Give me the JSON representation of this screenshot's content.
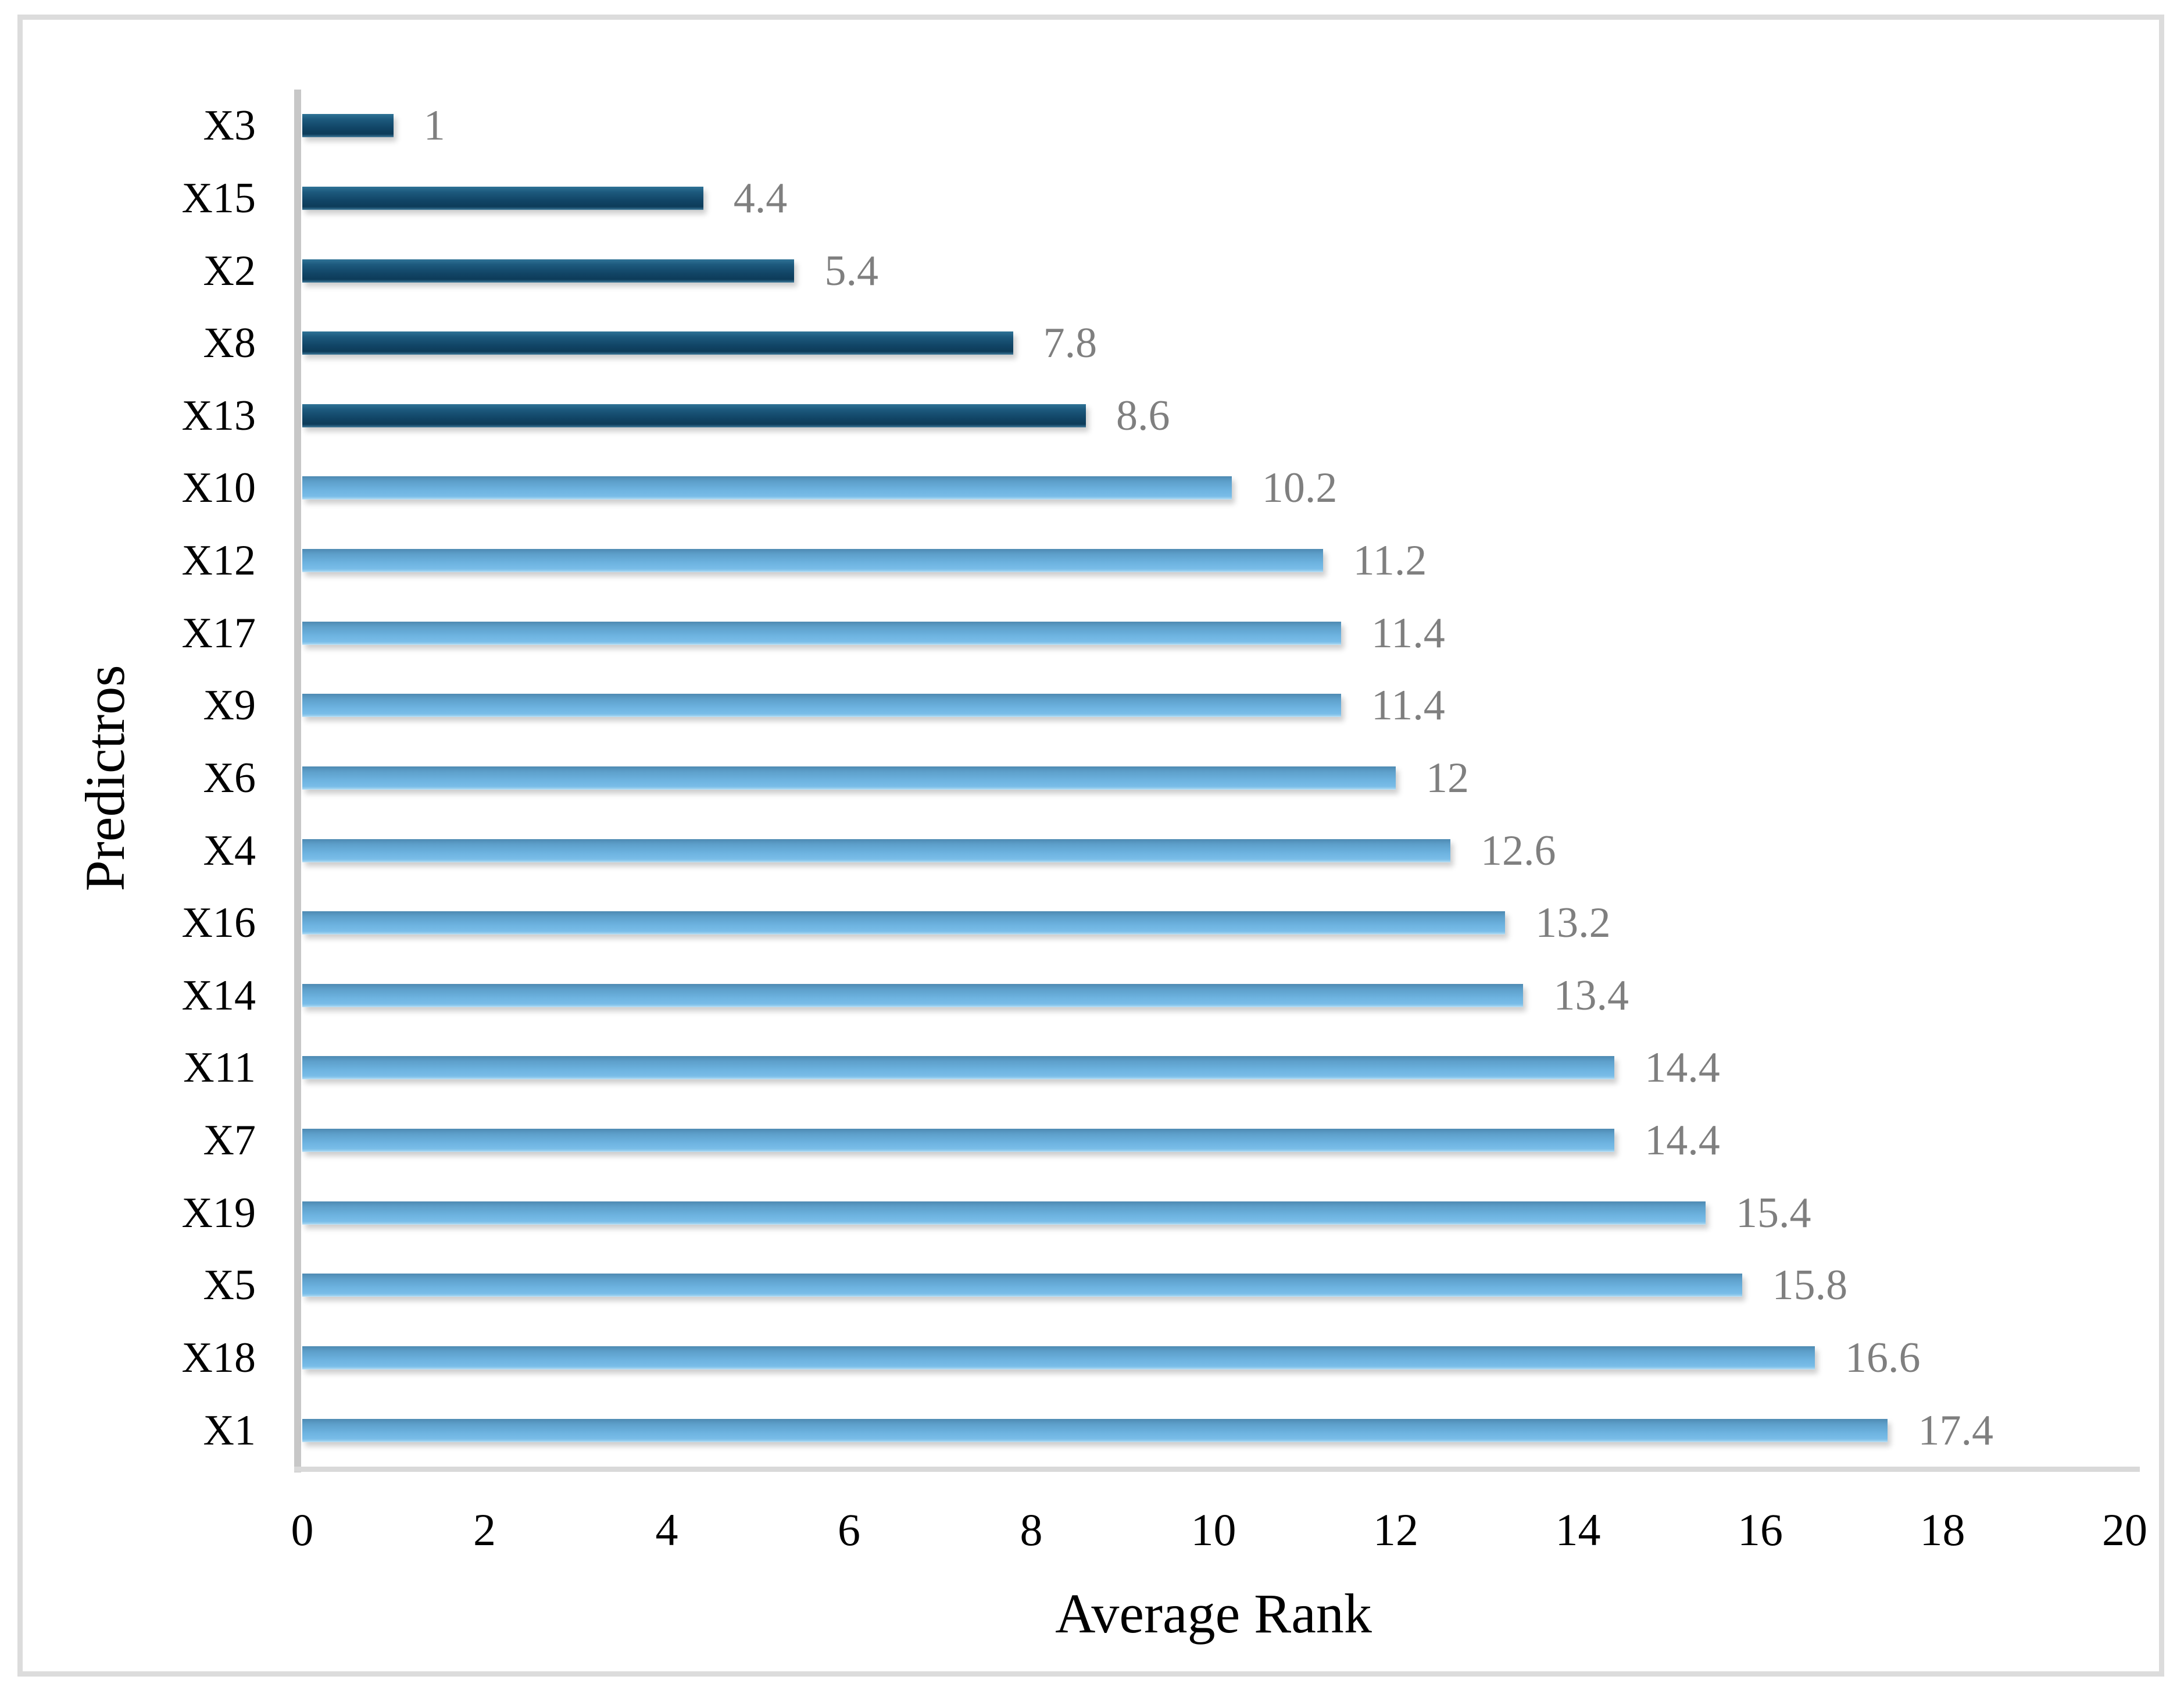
{
  "chart_data": {
    "type": "bar",
    "orientation": "horizontal",
    "title": "",
    "xlabel": "Average Rank",
    "ylabel": "Predictros",
    "xlim": [
      0,
      20
    ],
    "x_ticks": [
      "0",
      "2",
      "4",
      "6",
      "8",
      "10",
      "12",
      "14",
      "16",
      "18",
      "20"
    ],
    "grid": false,
    "legend": "none",
    "categories": [
      "X3",
      "X15",
      "X2",
      "X8",
      "X13",
      "X10",
      "X12",
      "X17",
      "X9",
      "X6",
      "X4",
      "X16",
      "X14",
      "X11",
      "X7",
      "X19",
      "X5",
      "X18",
      "X1"
    ],
    "values": [
      1,
      4.4,
      5.4,
      7.8,
      8.6,
      10.2,
      11.2,
      11.4,
      11.4,
      12,
      12.6,
      13.2,
      13.4,
      14.4,
      14.4,
      15.4,
      15.8,
      16.6,
      17.4
    ],
    "value_labels": [
      "1",
      "4.4",
      "5.4",
      "7.8",
      "8.6",
      "10.2",
      "11.2",
      "11.4",
      "11.4",
      "12",
      "12.6",
      "13.2",
      "13.4",
      "14.4",
      "14.4",
      "15.4",
      "15.8",
      "16.6",
      "17.4"
    ],
    "bar_groups": [
      "dark",
      "dark",
      "dark",
      "dark",
      "dark",
      "light",
      "light",
      "light",
      "light",
      "light",
      "light",
      "light",
      "light",
      "light",
      "light",
      "light",
      "light",
      "light",
      "light"
    ],
    "colors": {
      "dark_bar_top": "#2f7396",
      "dark_bar_bottom": "#0d3b59",
      "light_bar_top": "#4e8ab2",
      "light_bar_bottom": "#79bde8",
      "value_label": "#7f7f7f",
      "category_label": "#000000",
      "y_axis_line": "#c7c7c7",
      "x_axis_line": "#d9d9d9",
      "frame_border": "#dcdcdc",
      "background": "#ffffff"
    }
  }
}
